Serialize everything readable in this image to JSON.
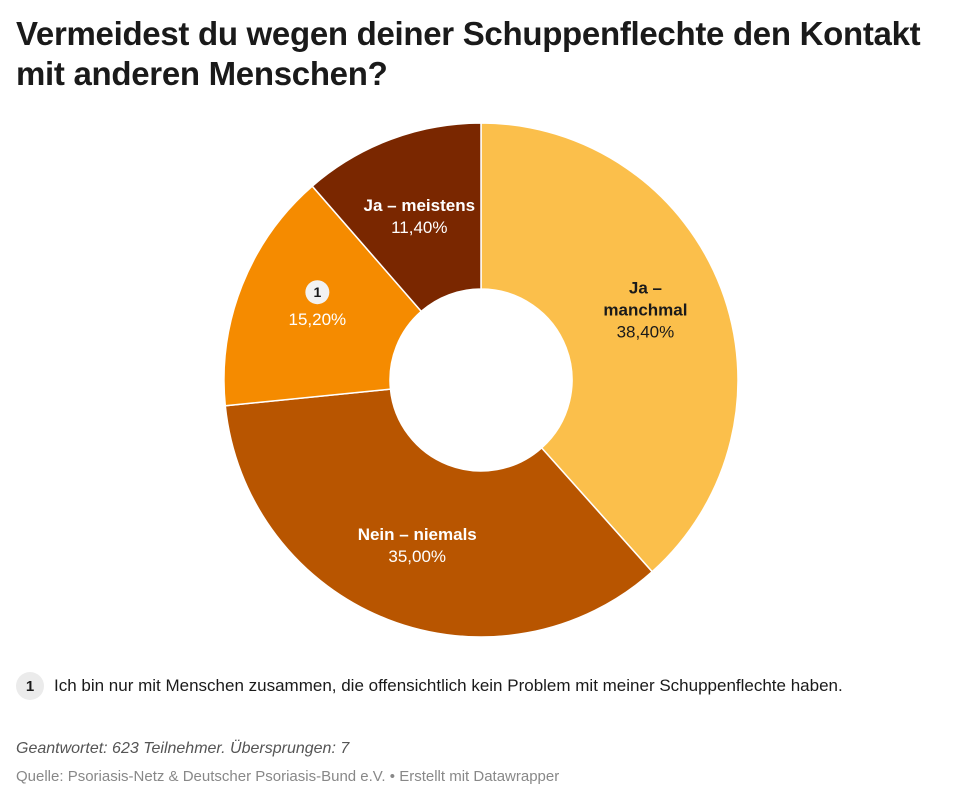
{
  "title": "Vermeidest du wegen deiner Schuppenflechte den Kontakt mit anderen Menschen?",
  "chart_data": {
    "type": "pie",
    "donut": true,
    "slices": [
      {
        "label": "Ja – manchmal",
        "value": 38.4,
        "display": "38,40%",
        "color": "#fbbf4b",
        "label_color": "#1a1a1a"
      },
      {
        "label": "Nein – niemals",
        "value": 35.0,
        "display": "35,00%",
        "color": "#b85500",
        "label_color": "#ffffff"
      },
      {
        "label": "1",
        "value": 15.2,
        "display": "15,20%",
        "color": "#f58b00",
        "label_color": "#ffffff",
        "badge": true
      },
      {
        "label": "Ja – meistens",
        "value": 11.4,
        "display": "11,40%",
        "color": "#7a2700",
        "label_color": "#ffffff"
      }
    ]
  },
  "note": {
    "badge": "1",
    "text": "Ich bin nur mit Menschen zusammen, die offensichtlich kein Problem mit meiner Schuppenflechte haben."
  },
  "answered": "Geantwortet: 623 Teilnehmer. Übersprungen: 7",
  "source": "Quelle: Psoriasis-Netz & Deutscher Psoriasis-Bund e.V. • Erstellt mit Datawrapper"
}
